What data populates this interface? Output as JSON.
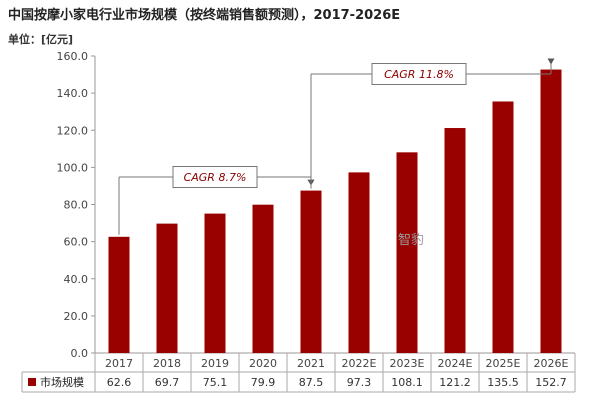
{
  "header": {
    "title": "中国按摩小家电行业市场规模（按终端销售额预测），2017-2026E",
    "unit_label": "单位：[亿元]"
  },
  "watermark": "智豹",
  "chart_data": {
    "type": "bar",
    "title": "中国按摩小家电行业市场规模（按终端销售额预测），2017-2026E",
    "categories": [
      "2017",
      "2018",
      "2019",
      "2020",
      "2021",
      "2022E",
      "2023E",
      "2024E",
      "2025E",
      "2026E"
    ],
    "series": [
      {
        "name": "市场规模",
        "values": [
          62.6,
          69.7,
          75.1,
          79.9,
          87.5,
          97.3,
          108.1,
          121.2,
          135.5,
          152.7
        ]
      }
    ],
    "ylim": [
      0,
      160
    ],
    "yticks": [
      "0.0",
      "20.0",
      "40.0",
      "60.0",
      "80.0",
      "100.0",
      "120.0",
      "140.0",
      "160.0"
    ],
    "value_labels": [
      "62.6",
      "69.7",
      "75.1",
      "79.9",
      "87.5",
      "97.3",
      "108.1",
      "121.2",
      "135.5",
      "152.7"
    ],
    "bar_color": "#990000",
    "grid": false,
    "legend": "bottom-left data table",
    "annotations": [
      {
        "text": "CAGR 8.7%",
        "from": "2017",
        "to": "2021"
      },
      {
        "text": "CAGR 11.8%",
        "from": "2021",
        "to": "2026E"
      }
    ]
  }
}
